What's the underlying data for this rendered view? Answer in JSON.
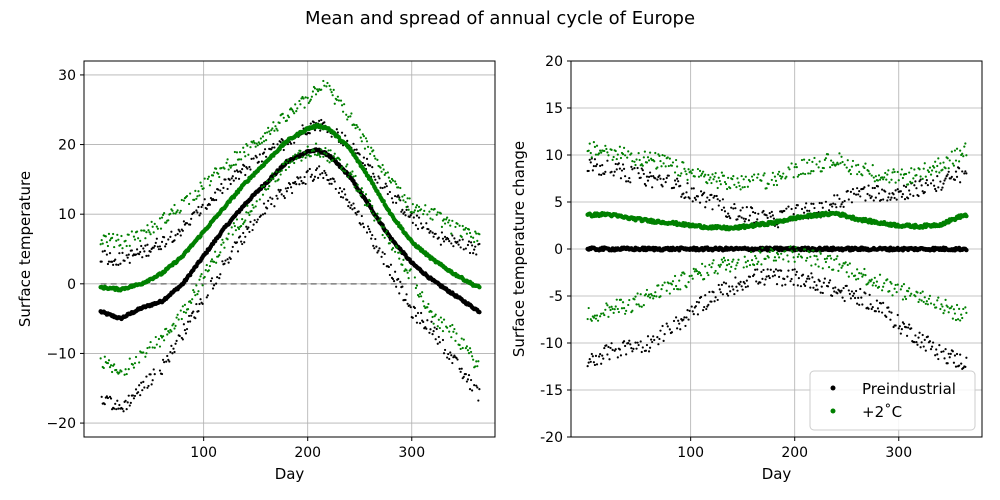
{
  "suptitle": "Mean and spread of annual cycle of Europe",
  "colors": {
    "preindustrial": "#000000",
    "plus2": "#008000",
    "grid": "#b0b0b0",
    "zero_line": "#808080"
  },
  "legend": {
    "placement": "lower-right",
    "entries": [
      "Preindustrial",
      "+2˚C"
    ]
  },
  "chart_data": [
    {
      "type": "scatter",
      "title": "",
      "xlabel": "Day",
      "ylabel": "Surface temperature",
      "xlim": [
        -15,
        380
      ],
      "ylim": [
        -22,
        32
      ],
      "xticks": [
        100,
        200,
        300
      ],
      "xtick_labels": [
        "100",
        "200",
        "300"
      ],
      "yticks": [
        -20,
        -10,
        0,
        10,
        20,
        30
      ],
      "ytick_labels": [
        "−20",
        "−10",
        "0",
        "10",
        "20",
        "30"
      ],
      "grid": true,
      "reference_line": {
        "y": 0,
        "style": "dashed"
      },
      "series": [
        {
          "name": "Preindustrial",
          "role": "mean",
          "color": "#000000",
          "x": [
            1,
            20,
            40,
            60,
            80,
            100,
            120,
            140,
            160,
            180,
            200,
            210,
            220,
            240,
            260,
            280,
            300,
            320,
            340,
            360,
            365
          ],
          "values": [
            -4,
            -5,
            -3.5,
            -2.5,
            0,
            4,
            8,
            11.5,
            14.5,
            17.5,
            19,
            19.2,
            18.5,
            15.5,
            11,
            6.5,
            3,
            0.5,
            -1.5,
            -3.5,
            -4
          ]
        },
        {
          "name": "Preindustrial",
          "role": "upper",
          "color": "#000000",
          "x": [
            1,
            20,
            40,
            60,
            80,
            100,
            120,
            140,
            160,
            180,
            200,
            210,
            220,
            240,
            260,
            280,
            300,
            320,
            340,
            360,
            365
          ],
          "values": [
            4,
            3.5,
            4.5,
            6,
            8,
            11,
            14,
            16.5,
            18.5,
            20.5,
            22.5,
            23,
            22.5,
            20,
            16.5,
            13,
            9.5,
            7,
            6,
            5,
            5
          ]
        },
        {
          "name": "Preindustrial",
          "role": "lower",
          "color": "#000000",
          "x": [
            1,
            20,
            40,
            60,
            80,
            100,
            120,
            140,
            160,
            180,
            200,
            210,
            220,
            240,
            260,
            280,
            300,
            320,
            340,
            360,
            365
          ],
          "values": [
            -16,
            -18,
            -15,
            -12,
            -7,
            -2,
            3,
            7,
            11,
            13.5,
            15.5,
            16,
            15,
            12,
            7,
            2,
            -4,
            -6.5,
            -11,
            -15,
            -16
          ]
        },
        {
          "name": "+2˚C",
          "role": "mean",
          "color": "#008000",
          "x": [
            1,
            20,
            40,
            60,
            80,
            100,
            120,
            140,
            160,
            180,
            200,
            210,
            220,
            240,
            260,
            280,
            300,
            320,
            340,
            360,
            365
          ],
          "values": [
            -0.5,
            -0.8,
            0,
            1.5,
            4,
            7.5,
            11,
            14.5,
            17.5,
            20.5,
            22.3,
            22.7,
            22.3,
            19.5,
            15,
            10,
            6,
            3.5,
            1.5,
            -0.2,
            -0.5
          ]
        },
        {
          "name": "+2˚C",
          "role": "upper",
          "color": "#008000",
          "x": [
            1,
            20,
            40,
            60,
            80,
            100,
            120,
            140,
            160,
            180,
            200,
            210,
            220,
            240,
            260,
            280,
            300,
            320,
            340,
            360,
            365
          ],
          "values": [
            6.5,
            6,
            7,
            9,
            11.5,
            14,
            17,
            19,
            21.5,
            24,
            26.5,
            28.5,
            28,
            24,
            19,
            14.5,
            11,
            10,
            8,
            6.5,
            6.5
          ]
        },
        {
          "name": "+2˚C",
          "role": "lower",
          "color": "#008000",
          "x": [
            1,
            20,
            40,
            60,
            80,
            100,
            120,
            140,
            160,
            180,
            200,
            210,
            220,
            240,
            260,
            280,
            300,
            320,
            340,
            360,
            365
          ],
          "values": [
            -11,
            -13,
            -10,
            -8,
            -4,
            1,
            6,
            10,
            14,
            17,
            19,
            19.3,
            18.5,
            16,
            11,
            6,
            1,
            -5,
            -7,
            -11,
            -12
          ]
        }
      ]
    },
    {
      "type": "scatter",
      "title": "",
      "xlabel": "Day",
      "ylabel": "Surface temperature change",
      "xlim": [
        -15,
        380
      ],
      "ylim": [
        -20,
        20
      ],
      "xticks": [
        100,
        200,
        300
      ],
      "xtick_labels": [
        "100",
        "200",
        "300"
      ],
      "yticks": [
        -20,
        -15,
        -10,
        -5,
        0,
        5,
        10,
        15,
        20
      ],
      "ytick_labels": [
        "-20",
        "-15",
        "-10",
        "-5",
        "0",
        "5",
        "10",
        "15",
        "20"
      ],
      "grid": true,
      "series": [
        {
          "name": "Preindustrial",
          "role": "mean",
          "color": "#000000",
          "x": [
            1,
            365
          ],
          "values": [
            0,
            0
          ]
        },
        {
          "name": "Preindustrial",
          "role": "upper",
          "color": "#000000",
          "x": [
            1,
            20,
            40,
            60,
            80,
            100,
            120,
            140,
            160,
            180,
            200,
            220,
            240,
            260,
            280,
            300,
            320,
            340,
            360,
            365
          ],
          "values": [
            9,
            8.5,
            8,
            7.5,
            7,
            6,
            5,
            4,
            3.5,
            3,
            4,
            4,
            5,
            6,
            6,
            6,
            6.5,
            7,
            8,
            8
          ]
        },
        {
          "name": "Preindustrial",
          "role": "lower",
          "color": "#000000",
          "x": [
            1,
            20,
            40,
            60,
            80,
            100,
            120,
            140,
            160,
            180,
            200,
            220,
            240,
            260,
            280,
            300,
            320,
            340,
            360,
            365
          ],
          "values": [
            -12,
            -11,
            -10.5,
            -10,
            -8.5,
            -7,
            -5,
            -4,
            -3,
            -3,
            -3,
            -3.5,
            -4.5,
            -5,
            -6,
            -8,
            -9.5,
            -11,
            -12,
            -12
          ]
        },
        {
          "name": "+2˚C",
          "role": "mean",
          "color": "#008000",
          "x": [
            1,
            20,
            40,
            60,
            80,
            100,
            120,
            140,
            160,
            180,
            200,
            220,
            240,
            260,
            280,
            300,
            320,
            340,
            360,
            365
          ],
          "values": [
            3.6,
            3.7,
            3.3,
            3.0,
            2.8,
            2.5,
            2.3,
            2.2,
            2.5,
            2.8,
            3.3,
            3.6,
            3.8,
            3.2,
            2.8,
            2.5,
            2.4,
            2.6,
            3.5,
            3.6
          ]
        },
        {
          "name": "+2˚C",
          "role": "upper",
          "color": "#008000",
          "x": [
            1,
            20,
            40,
            60,
            80,
            100,
            120,
            140,
            160,
            180,
            200,
            220,
            240,
            260,
            280,
            300,
            320,
            340,
            360,
            365
          ],
          "values": [
            10.5,
            10.5,
            10,
            9.5,
            9,
            8,
            7.5,
            7,
            7,
            7.5,
            8.5,
            9,
            9.5,
            8.5,
            8,
            7.5,
            8,
            9,
            10,
            10.5
          ]
        },
        {
          "name": "+2˚C",
          "role": "lower",
          "color": "#008000",
          "x": [
            1,
            20,
            40,
            60,
            80,
            100,
            120,
            140,
            160,
            180,
            200,
            220,
            240,
            260,
            280,
            300,
            320,
            340,
            360,
            365
          ],
          "values": [
            -7,
            -6.5,
            -6,
            -5,
            -4,
            -3,
            -2,
            -1.5,
            -1,
            -0.5,
            -0.5,
            -1,
            -1.5,
            -2.5,
            -3.5,
            -4.5,
            -5,
            -6,
            -7,
            -7
          ]
        }
      ]
    }
  ]
}
